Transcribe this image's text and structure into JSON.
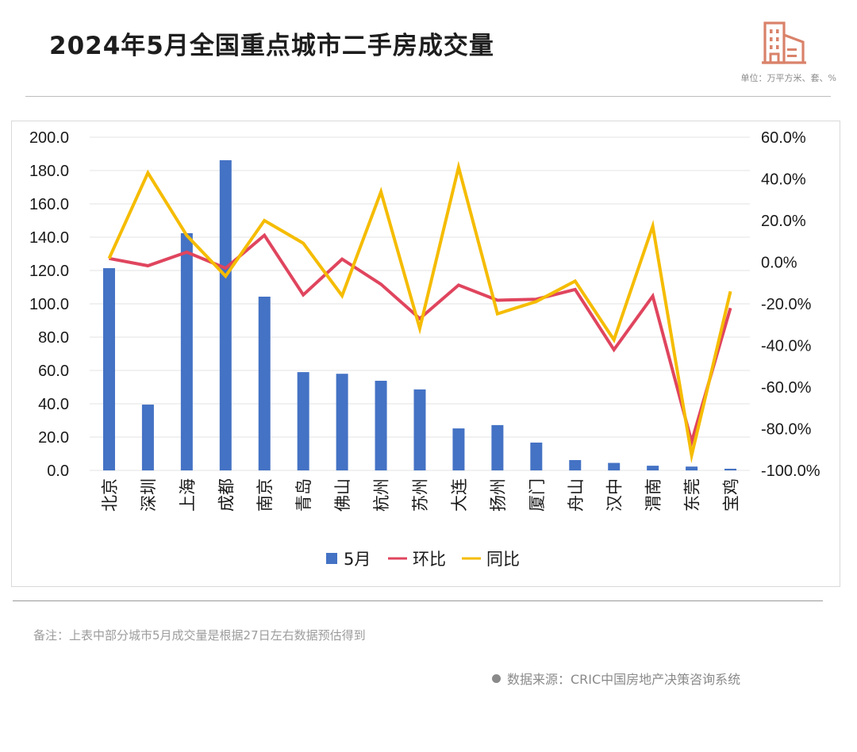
{
  "header": {
    "title": "2024年5月全国重点城市二手房成交量",
    "unit": "单位：万平方米、套、%",
    "logo_icon": "building-icon",
    "logo_color": "#d9826a"
  },
  "footer": {
    "note": "备注：上表中部分城市5月成交量是根据27日左右数据预估得到",
    "source": "数据来源：CRIC中国房地产决策咨询系统",
    "source_icon": "bullet-dot-icon"
  },
  "chart_data": {
    "type": "bar",
    "title": "2024年5月全国重点城市二手房成交量",
    "xlabel": "",
    "ylabel": "",
    "categories": [
      "北京",
      "深圳",
      "上海",
      "成都",
      "南京",
      "青岛",
      "佛山",
      "杭州",
      "苏州",
      "大连",
      "扬州",
      "厦门",
      "舟山",
      "汉中",
      "渭南",
      "东莞",
      "宝鸡"
    ],
    "ylim": [
      0,
      200
    ],
    "y_ticks": [
      "0.0",
      "20.0",
      "40.0",
      "60.0",
      "80.0",
      "100.0",
      "120.0",
      "140.0",
      "160.0",
      "180.0",
      "200.0"
    ],
    "y2lim": [
      -100,
      60
    ],
    "y2_ticks": [
      "-100.0%",
      "-80.0%",
      "-60.0%",
      "-40.0%",
      "-20.0%",
      "0.0%",
      "20.0%",
      "40.0%",
      "60.0%"
    ],
    "grid": true,
    "legend_position": "bottom",
    "series": [
      {
        "name": "5月",
        "type": "bar",
        "axis": "left",
        "color": "#4472c4",
        "values": [
          121.4,
          39.5,
          142.4,
          186.2,
          104.3,
          59.0,
          58.0,
          53.8,
          48.6,
          25.2,
          27.2,
          16.7,
          6.2,
          4.5,
          2.8,
          2.3,
          1.0
        ]
      },
      {
        "name": "环比",
        "type": "line",
        "axis": "right",
        "color": "#e0455e",
        "values": [
          1.8,
          -1.7,
          4.8,
          -2.9,
          12.9,
          -15.7,
          1.5,
          -10.6,
          -27.1,
          -11.0,
          -18.3,
          -17.8,
          -13.1,
          -42.0,
          -16.3,
          -86.2,
          -22.0
        ]
      },
      {
        "name": "同比",
        "type": "line",
        "axis": "right",
        "color": "#f5bc00",
        "values": [
          1.8,
          42.9,
          12.8,
          -6.7,
          20.0,
          9.1,
          -16.1,
          33.8,
          -31.8,
          45.6,
          -24.8,
          -18.9,
          -9.1,
          -37.3,
          17.3,
          -92.8,
          -14.0
        ]
      }
    ]
  }
}
